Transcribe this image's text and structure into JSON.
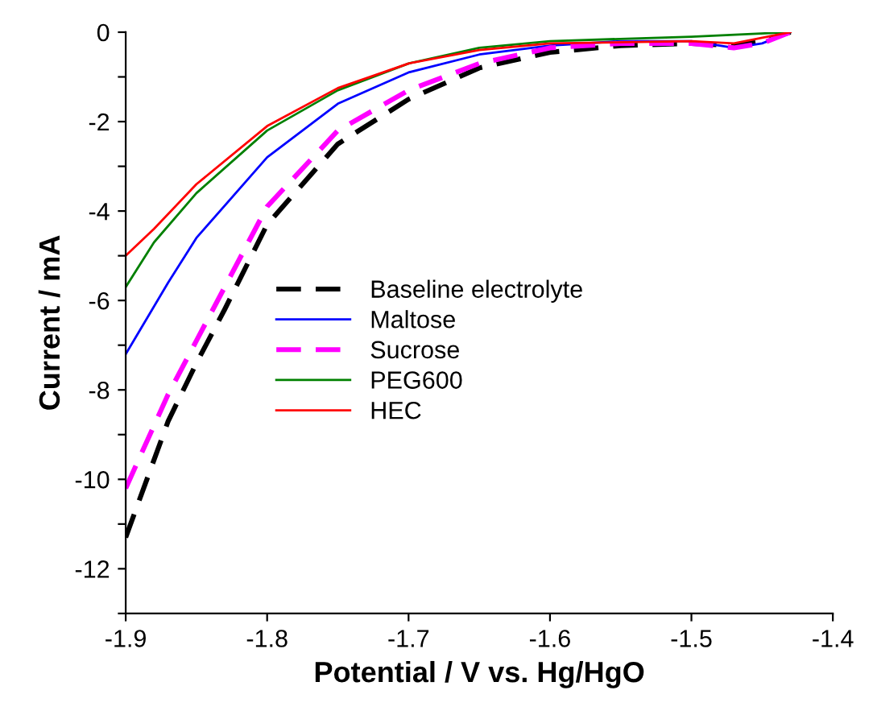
{
  "chart_data": {
    "type": "line",
    "xlabel": "Potential / V vs. Hg/HgO",
    "ylabel": "Current / mA",
    "xlim": [
      -1.9,
      -1.4
    ],
    "xticks": [
      -1.9,
      -1.8,
      -1.7,
      -1.6,
      -1.5,
      -1.4
    ],
    "ylim": [
      -13,
      0
    ],
    "yticks": [
      {
        "value": -13,
        "label": null
      },
      -12,
      {
        "value": -11,
        "label": null
      },
      -10,
      {
        "value": -9,
        "label": null
      },
      -8,
      {
        "value": -7,
        "label": null
      },
      -6,
      {
        "value": -5,
        "label": null
      },
      -4,
      {
        "value": -3,
        "label": null
      },
      -2,
      {
        "value": -1,
        "label": null
      },
      0
    ],
    "grid": false,
    "legend": "center",
    "marker": "none",
    "series": [
      {
        "name": "Baseline electrolyte",
        "color": "#000000",
        "line_style": "dashed",
        "x": [
          -1.9,
          -1.87,
          -1.85,
          -1.83,
          -1.8,
          -1.75,
          -1.7,
          -1.65,
          -1.6,
          -1.55,
          -1.5,
          -1.47,
          -1.45,
          -1.43
        ],
        "values": [
          -11.3,
          -8.7,
          -7.4,
          -6.2,
          -4.3,
          -2.5,
          -1.5,
          -0.8,
          -0.45,
          -0.3,
          -0.25,
          -0.3,
          -0.2,
          0
        ]
      },
      {
        "name": "Maltose",
        "color": "#0000ff",
        "line_style": "solid",
        "x": [
          -1.9,
          -1.87,
          -1.85,
          -1.8,
          -1.75,
          -1.7,
          -1.65,
          -1.6,
          -1.55,
          -1.5,
          -1.47,
          -1.45,
          -1.43
        ],
        "values": [
          -7.2,
          -5.6,
          -4.6,
          -2.8,
          -1.6,
          -0.9,
          -0.5,
          -0.3,
          -0.2,
          -0.2,
          -0.35,
          -0.25,
          0
        ]
      },
      {
        "name": "Sucrose",
        "color": "#ff00ff",
        "line_style": "dashed",
        "x": [
          -1.9,
          -1.87,
          -1.85,
          -1.8,
          -1.75,
          -1.7,
          -1.65,
          -1.6,
          -1.55,
          -1.5,
          -1.47,
          -1.45,
          -1.43
        ],
        "values": [
          -10.2,
          -8.1,
          -6.9,
          -3.9,
          -2.2,
          -1.3,
          -0.7,
          -0.35,
          -0.25,
          -0.25,
          -0.35,
          -0.25,
          0
        ]
      },
      {
        "name": "PEG600",
        "color": "#008000",
        "line_style": "solid",
        "x": [
          -1.9,
          -1.88,
          -1.85,
          -1.8,
          -1.75,
          -1.7,
          -1.65,
          -1.6,
          -1.5,
          -1.43
        ],
        "values": [
          -5.7,
          -4.7,
          -3.6,
          -2.2,
          -1.3,
          -0.7,
          -0.35,
          -0.2,
          -0.1,
          0
        ]
      },
      {
        "name": "HEC",
        "color": "#ff0000",
        "line_style": "solid",
        "x": [
          -1.9,
          -1.88,
          -1.85,
          -1.8,
          -1.75,
          -1.7,
          -1.65,
          -1.6,
          -1.5,
          -1.47,
          -1.43
        ],
        "values": [
          -5.0,
          -4.4,
          -3.4,
          -2.1,
          -1.25,
          -0.7,
          -0.4,
          -0.25,
          -0.2,
          -0.25,
          0
        ]
      }
    ]
  }
}
